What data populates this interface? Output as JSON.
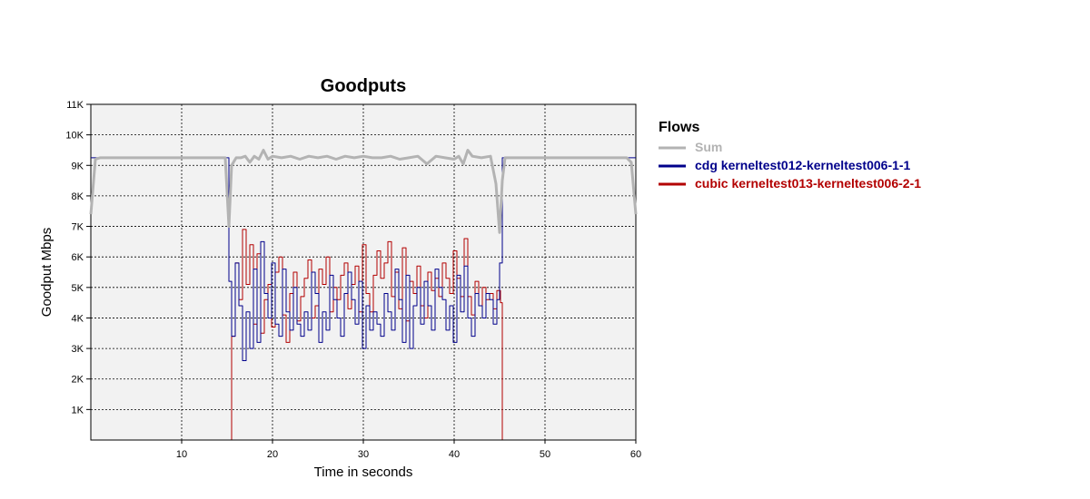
{
  "chart_data": {
    "type": "line",
    "title": "Goodputs",
    "xlabel": "Time in seconds",
    "ylabel": "Goodput Mbps",
    "xlim": [
      0,
      60
    ],
    "ylim": [
      0,
      11000
    ],
    "grid": true,
    "legend_position": "right",
    "legend_title": "Flows",
    "x_ticks": [
      10,
      20,
      30,
      40,
      50,
      60
    ],
    "y_ticks": [
      {
        "value": 1000,
        "label": "1K"
      },
      {
        "value": 2000,
        "label": "2K"
      },
      {
        "value": 3000,
        "label": "3K"
      },
      {
        "value": 4000,
        "label": "4K"
      },
      {
        "value": 5000,
        "label": "5K"
      },
      {
        "value": 6000,
        "label": "6K"
      },
      {
        "value": 7000,
        "label": "7K"
      },
      {
        "value": 8000,
        "label": "8K"
      },
      {
        "value": 9000,
        "label": "9K"
      },
      {
        "value": 10000,
        "label": "10K"
      },
      {
        "value": 11000,
        "label": "11K"
      }
    ],
    "series": [
      {
        "name": "Sum",
        "color": "#b3b3b3",
        "x": [
          0,
          0.5,
          1,
          2,
          3,
          4,
          5,
          6,
          7,
          8,
          9,
          10,
          11,
          12,
          13,
          14,
          14.8,
          15.2,
          15.5,
          16,
          16.5,
          17,
          17.5,
          18,
          18.5,
          19,
          19.5,
          20,
          21,
          22,
          23,
          24,
          25,
          26,
          27,
          28,
          29,
          30,
          31,
          32,
          33,
          34,
          35,
          36,
          37,
          38,
          39,
          40,
          40.5,
          41,
          41.5,
          42,
          43,
          44,
          44.6,
          45,
          45.3,
          45.6,
          46,
          47,
          48,
          50,
          52,
          54,
          56,
          58,
          59,
          59.5,
          60
        ],
        "y": [
          7400,
          9200,
          9250,
          9250,
          9250,
          9250,
          9250,
          9250,
          9250,
          9250,
          9250,
          9250,
          9250,
          9250,
          9250,
          9250,
          9250,
          7000,
          9000,
          9250,
          9250,
          9300,
          9100,
          9300,
          9200,
          9500,
          9200,
          9300,
          9250,
          9300,
          9200,
          9300,
          9250,
          9300,
          9200,
          9300,
          9250,
          9300,
          9250,
          9250,
          9300,
          9200,
          9250,
          9300,
          9050,
          9300,
          9250,
          9200,
          9300,
          9050,
          9500,
          9300,
          9250,
          9300,
          8400,
          6800,
          8500,
          9250,
          9250,
          9250,
          9250,
          9250,
          9250,
          9250,
          9250,
          9250,
          9250,
          9100,
          7400
        ]
      },
      {
        "name": "cdg kerneltest012-kerneltest006-1-1",
        "color": "#00008b",
        "x": [
          0,
          0.3,
          1,
          5,
          10,
          14,
          15.2,
          15.5,
          15.9,
          16.3,
          16.7,
          17.1,
          17.5,
          17.9,
          18.3,
          18.7,
          19.1,
          19.5,
          19.9,
          20.3,
          20.7,
          21.1,
          21.5,
          21.9,
          22.3,
          22.7,
          23.1,
          23.5,
          23.9,
          24.3,
          24.7,
          25.1,
          25.5,
          25.9,
          26.3,
          26.7,
          27.1,
          27.5,
          27.9,
          28.3,
          28.7,
          29.1,
          29.5,
          29.9,
          30.3,
          30.7,
          31.1,
          31.5,
          31.9,
          32.3,
          32.7,
          33.1,
          33.5,
          33.9,
          34.3,
          34.7,
          35.1,
          35.5,
          35.9,
          36.3,
          36.7,
          37.1,
          37.5,
          37.9,
          38.3,
          38.7,
          39.1,
          39.5,
          39.9,
          40.3,
          40.7,
          41.1,
          41.5,
          41.9,
          42.3,
          42.7,
          43.1,
          43.5,
          43.9,
          44.3,
          44.7,
          45.0,
          45.3,
          46,
          50,
          55,
          59,
          60
        ],
        "y": [
          9250,
          9250,
          9250,
          9250,
          9250,
          9250,
          5200,
          3400,
          5800,
          4400,
          2600,
          4200,
          3000,
          5600,
          3200,
          6500,
          4800,
          4000,
          5800,
          3800,
          3400,
          5600,
          4200,
          3600,
          5000,
          3800,
          3400,
          4200,
          3600,
          5500,
          4800,
          3200,
          4200,
          3600,
          5400,
          4600,
          4000,
          3400,
          4800,
          5500,
          4600,
          3800,
          5200,
          3000,
          4400,
          3600,
          4200,
          3800,
          3400,
          4800,
          4200,
          3600,
          5600,
          4600,
          3200,
          5400,
          3000,
          4400,
          5000,
          3800,
          5200,
          4400,
          3600,
          5600,
          5000,
          4600,
          3600,
          4400,
          3200,
          5400,
          4200,
          5700,
          4000,
          3400,
          4800,
          4400,
          4000,
          4800,
          4600,
          3800,
          4600,
          5800,
          9250,
          9250,
          9250,
          9250,
          9250,
          9250
        ]
      },
      {
        "name": "cubic kerneltest013-kerneltest006-2-1",
        "color": "#b30000",
        "x": [
          0,
          15.2,
          15.5,
          15.9,
          16.3,
          16.7,
          17.1,
          17.5,
          17.9,
          18.3,
          18.7,
          19.1,
          19.5,
          19.9,
          20.3,
          20.7,
          21.1,
          21.5,
          21.9,
          22.3,
          22.7,
          23.1,
          23.5,
          23.9,
          24.3,
          24.7,
          25.1,
          25.5,
          25.9,
          26.3,
          26.7,
          27.1,
          27.5,
          27.9,
          28.3,
          28.7,
          29.1,
          29.5,
          29.9,
          30.3,
          30.7,
          31.1,
          31.5,
          31.9,
          32.3,
          32.7,
          33.1,
          33.5,
          33.9,
          34.3,
          34.7,
          35.1,
          35.5,
          35.9,
          36.3,
          36.7,
          37.1,
          37.5,
          37.9,
          38.3,
          38.7,
          39.1,
          39.5,
          39.9,
          40.3,
          40.7,
          41.1,
          41.5,
          41.9,
          42.3,
          42.7,
          43.1,
          43.5,
          43.9,
          44.3,
          44.7,
          45.1,
          45.3,
          60
        ],
        "y": [
          0,
          0,
          3400,
          5800,
          4600,
          6900,
          5100,
          6400,
          3800,
          6100,
          3500,
          4600,
          5100,
          3700,
          5500,
          6000,
          4100,
          3200,
          4800,
          5500,
          3900,
          4700,
          5300,
          5900,
          4000,
          4400,
          5600,
          5100,
          6000,
          4200,
          5000,
          4600,
          5400,
          5800,
          4300,
          5100,
          5700,
          4200,
          6400,
          4800,
          4200,
          5400,
          6200,
          5300,
          5800,
          6500,
          4700,
          5500,
          4300,
          6300,
          3900,
          5200,
          4800,
          5700,
          4400,
          4000,
          5500,
          4900,
          5300,
          4700,
          5800,
          5300,
          4800,
          6200,
          5300,
          4700,
          6600,
          4700,
          4100,
          5200,
          4400,
          5000,
          4600,
          4800,
          4300,
          4900,
          4500,
          0,
          0
        ]
      }
    ]
  }
}
